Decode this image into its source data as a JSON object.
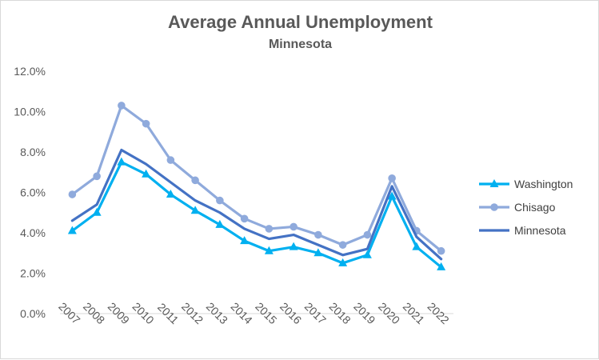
{
  "chart_data": {
    "type": "line",
    "title": "Average Annual Unemployment",
    "subtitle": "Minnesota",
    "xlabel": "",
    "ylabel": "",
    "categories": [
      "2007",
      "2008",
      "2009",
      "2010",
      "2011",
      "2012",
      "2013",
      "2014",
      "2015",
      "2016",
      "2017",
      "2018",
      "2019",
      "2020",
      "2021",
      "2022"
    ],
    "ylim": [
      0,
      12
    ],
    "yticks": [
      "0.0%",
      "2.0%",
      "4.0%",
      "6.0%",
      "8.0%",
      "10.0%",
      "12.0%"
    ],
    "grid": false,
    "legend_position": "right",
    "series": [
      {
        "name": "Washington",
        "color": "#00b0f0",
        "marker": "triangle",
        "values": [
          4.1,
          5.0,
          7.5,
          6.9,
          5.9,
          5.1,
          4.4,
          3.6,
          3.1,
          3.3,
          3.0,
          2.5,
          2.9,
          5.8,
          3.3,
          2.3
        ]
      },
      {
        "name": "Chisago",
        "color": "#8faadc",
        "marker": "circle",
        "values": [
          5.9,
          6.8,
          10.3,
          9.4,
          7.6,
          6.6,
          5.6,
          4.7,
          4.2,
          4.3,
          3.9,
          3.4,
          3.9,
          6.7,
          4.1,
          3.1
        ]
      },
      {
        "name": "Minnesota",
        "color": "#4472c4",
        "marker": "none",
        "values": [
          4.6,
          5.4,
          8.1,
          7.4,
          6.5,
          5.6,
          5.0,
          4.2,
          3.7,
          3.9,
          3.4,
          2.9,
          3.2,
          6.3,
          3.8,
          2.7
        ]
      }
    ]
  }
}
